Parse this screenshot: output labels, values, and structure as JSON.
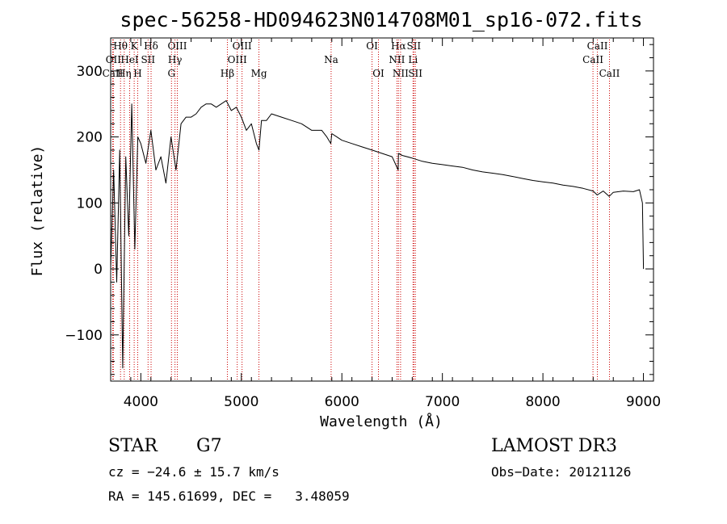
{
  "chart_data": {
    "type": "line",
    "title": "spec-56258-HD094623N014708M01_sp16-072.fits",
    "xlabel": "Wavelength (Å)",
    "ylabel": "Flux (relative)",
    "xlim": [
      3700,
      9100
    ],
    "ylim": [
      -170,
      350
    ],
    "xticks": [
      4000,
      5000,
      6000,
      7000,
      8000,
      9000
    ],
    "yticks": [
      -100,
      0,
      100,
      200,
      300
    ],
    "xtick_labels": [
      "4000",
      "5000",
      "6000",
      "7000",
      "8000",
      "9000"
    ],
    "ytick_labels": [
      "−100",
      "0",
      "100",
      "200",
      "300"
    ],
    "series": [
      {
        "name": "spectrum",
        "x": [
          3700,
          3730,
          3760,
          3790,
          3820,
          3850,
          3880,
          3910,
          3940,
          3970,
          4000,
          4050,
          4100,
          4150,
          4200,
          4250,
          4300,
          4350,
          4400,
          4450,
          4500,
          4550,
          4600,
          4650,
          4700,
          4750,
          4800,
          4850,
          4900,
          4950,
          5000,
          5050,
          5100,
          5150,
          5175,
          5200,
          5250,
          5300,
          5400,
          5500,
          5600,
          5700,
          5800,
          5850,
          5890,
          5900,
          5950,
          6000,
          6100,
          6200,
          6300,
          6400,
          6500,
          6560,
          6563,
          6600,
          6700,
          6800,
          6900,
          7000,
          7100,
          7200,
          7300,
          7400,
          7500,
          7600,
          7700,
          7800,
          7900,
          8000,
          8100,
          8200,
          8300,
          8400,
          8500,
          8540,
          8600,
          8660,
          8700,
          8800,
          8900,
          8960,
          8990,
          9000
        ],
        "y": [
          0,
          150,
          -20,
          180,
          -150,
          170,
          50,
          250,
          30,
          200,
          190,
          160,
          210,
          150,
          170,
          130,
          200,
          150,
          220,
          230,
          230,
          235,
          245,
          250,
          250,
          245,
          250,
          255,
          240,
          245,
          230,
          210,
          220,
          190,
          180,
          225,
          225,
          235,
          230,
          225,
          220,
          210,
          210,
          200,
          190,
          205,
          200,
          195,
          190,
          185,
          180,
          175,
          170,
          150,
          175,
          172,
          168,
          163,
          160,
          158,
          156,
          154,
          150,
          147,
          145,
          143,
          140,
          137,
          134,
          132,
          130,
          127,
          125,
          122,
          118,
          112,
          118,
          110,
          116,
          118,
          117,
          120,
          100,
          0
        ]
      }
    ],
    "spectral_lines": [
      {
        "label": "Hθ",
        "x": 3798,
        "row": 0
      },
      {
        "label": "K",
        "x": 3934,
        "row": 0
      },
      {
        "label": "Hδ",
        "x": 4102,
        "row": 0
      },
      {
        "label": "OIII",
        "x": 4363,
        "row": 0
      },
      {
        "label": "OIII",
        "x": 5007,
        "row": 0
      },
      {
        "label": "OI",
        "x": 6300,
        "row": 0
      },
      {
        "label": "Hα",
        "x": 6563,
        "row": 0
      },
      {
        "label": "SII",
        "x": 6716,
        "row": 0
      },
      {
        "label": "CaII",
        "x": 8542,
        "row": 0
      },
      {
        "label": "OII",
        "x": 3727,
        "row": 1
      },
      {
        "label": "HeI",
        "x": 3889,
        "row": 1
      },
      {
        "label": "SII",
        "x": 4072,
        "row": 1
      },
      {
        "label": "Hγ",
        "x": 4340,
        "row": 1
      },
      {
        "label": "OIII",
        "x": 4959,
        "row": 1
      },
      {
        "label": "Na",
        "x": 5893,
        "row": 1
      },
      {
        "label": "NII",
        "x": 6548,
        "row": 1
      },
      {
        "label": "Li",
        "x": 6708,
        "row": 1
      },
      {
        "label": "CaII",
        "x": 8498,
        "row": 1
      },
      {
        "label": "CaII",
        "x": 3720,
        "row": 2
      },
      {
        "label": "Hη",
        "x": 3835,
        "row": 2
      },
      {
        "label": "H",
        "x": 3969,
        "row": 2
      },
      {
        "label": "G",
        "x": 4305,
        "row": 2
      },
      {
        "label": "Hβ",
        "x": 4861,
        "row": 2
      },
      {
        "label": "Mg",
        "x": 5175,
        "row": 2
      },
      {
        "label": "OI",
        "x": 6364,
        "row": 2
      },
      {
        "label": "NII",
        "x": 6584,
        "row": 2
      },
      {
        "label": "SII",
        "x": 6731,
        "row": 2
      },
      {
        "label": "CaII",
        "x": 8662,
        "row": 2
      }
    ],
    "line_color": "#cc0000",
    "spectrum_color": "#000000"
  },
  "info": {
    "object_type": "STAR",
    "subclass": "G7",
    "survey": "LAMOST DR3",
    "redshift_text": "cz = −24.6 ± 15.7 km/s",
    "obs_date_text": "Obs−Date: 20121126",
    "coords_text": "RA = 145.61699, DEC =   3.48059"
  }
}
